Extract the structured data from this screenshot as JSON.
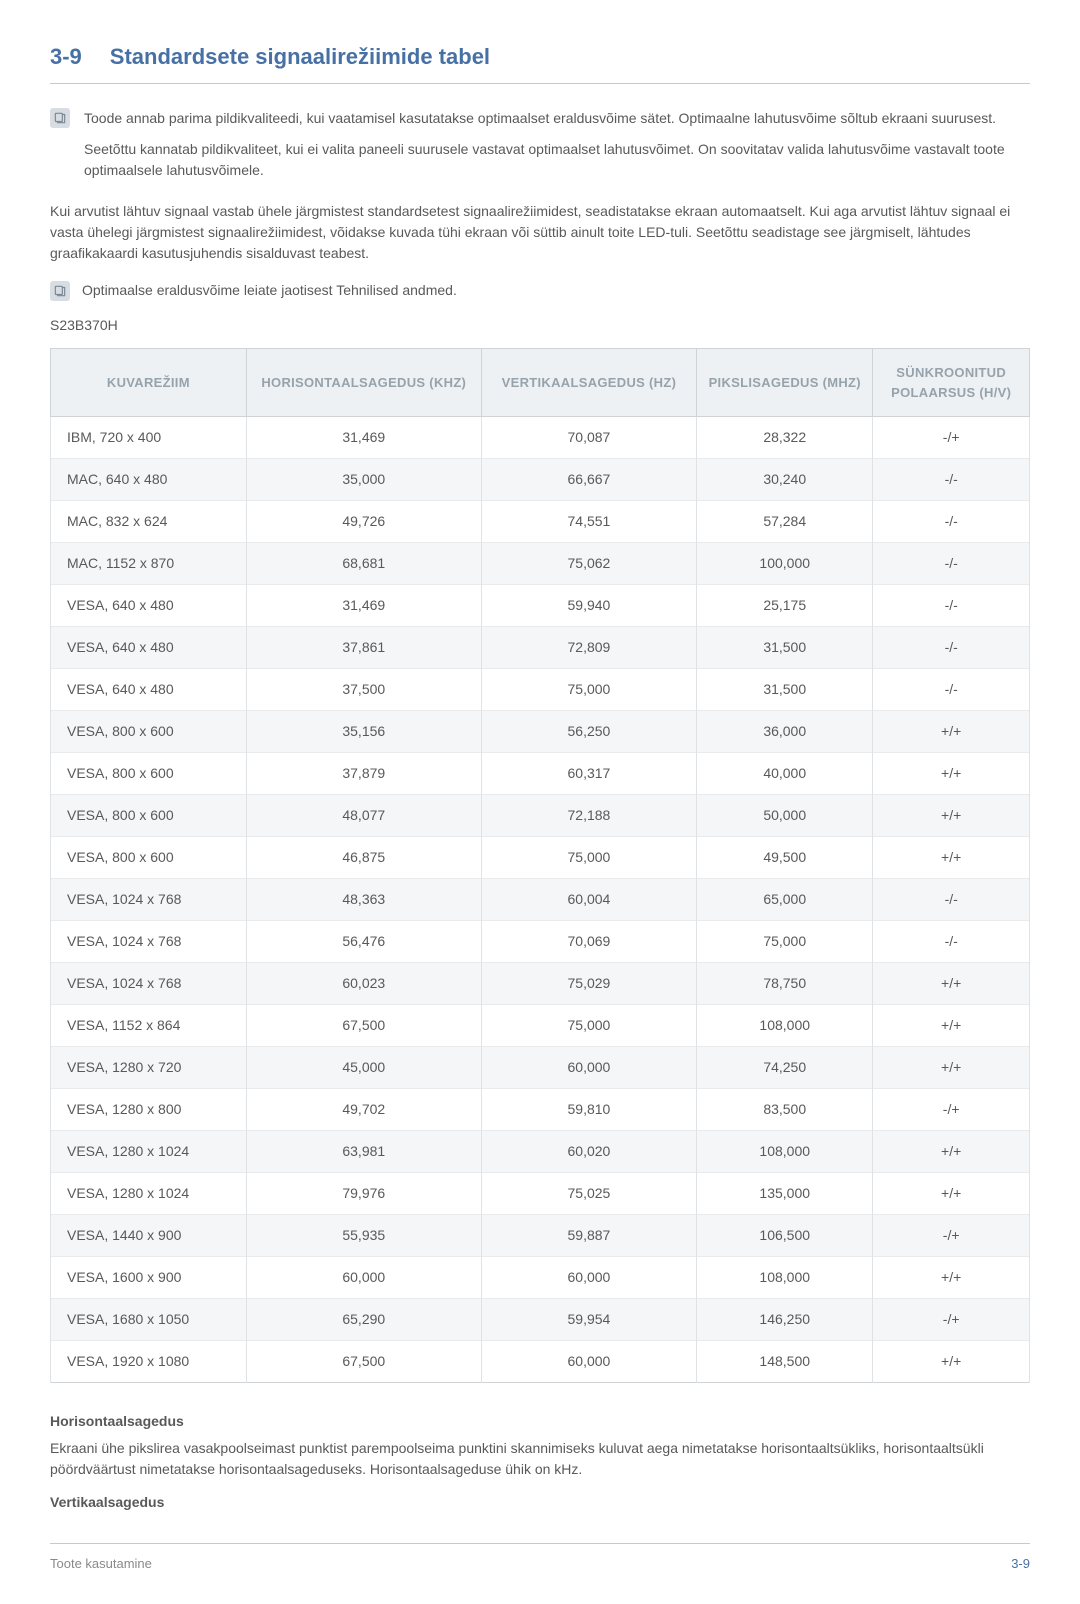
{
  "section": {
    "number": "3-9",
    "title": "Standardsete signaalirežiimide tabel"
  },
  "note1": {
    "p1": "Toode annab parima pildikvaliteedi, kui vaatamisel kasutatakse optimaalset eraldusvõime sätet. Optimaalne lahutusvõime sõltub ekraani suurusest.",
    "p2": "Seetõttu kannatab pildikvaliteet, kui ei valita paneeli suurusele vastavat optimaalset lahutusvõimet. On soovitatav valida lahutusvõime vastavalt toote optimaalsele lahutusvõimele."
  },
  "para1": "Kui arvutist lähtuv signaal vastab ühele järgmistest standardsetest signaalirežiimidest, seadistatakse ekraan automaatselt. Kui aga arvutist lähtuv signaal ei vasta ühelegi järgmistest signaalirežiimidest, võidakse kuvada tühi ekraan või süttib ainult toite LED-tuli. Seetõttu seadistage see järgmiselt, lähtudes graafikakaardi kasutusjuhendis sisalduvast teabest.",
  "note2": "Optimaalse eraldusvõime leiate jaotisest Tehnilised andmed.",
  "model": "S23B370H",
  "table": {
    "headers": {
      "mode": "KUVAREŽIIM",
      "hfreq": "HORISONTAALSAGEDUS (KHZ)",
      "vfreq": "VERTIKAALSAGEDUS (HZ)",
      "pixclk": "PIKSLISAGEDUS (MHZ)",
      "pol": "SÜNKROONITUD POLAARSUS (H/V)"
    },
    "col_widths": [
      "20%",
      "24%",
      "22%",
      "18%",
      "16%"
    ],
    "header_bg": "#eef1f3",
    "header_color": "#97a3ac",
    "row_alt_bg": "#f5f6f8",
    "border_color": "#cfd3d6",
    "rows": [
      {
        "mode": "IBM, 720 x 400",
        "h": "31,469",
        "v": "70,087",
        "p": "28,322",
        "pol": "-/+"
      },
      {
        "mode": "MAC, 640 x 480",
        "h": "35,000",
        "v": "66,667",
        "p": "30,240",
        "pol": "-/-"
      },
      {
        "mode": "MAC, 832 x 624",
        "h": "49,726",
        "v": "74,551",
        "p": "57,284",
        "pol": "-/-"
      },
      {
        "mode": "MAC, 1152 x 870",
        "h": "68,681",
        "v": "75,062",
        "p": "100,000",
        "pol": "-/-"
      },
      {
        "mode": "VESA, 640 x 480",
        "h": "31,469",
        "v": "59,940",
        "p": "25,175",
        "pol": "-/-"
      },
      {
        "mode": "VESA, 640 x 480",
        "h": "37,861",
        "v": "72,809",
        "p": "31,500",
        "pol": "-/-"
      },
      {
        "mode": "VESA, 640 x 480",
        "h": "37,500",
        "v": "75,000",
        "p": "31,500",
        "pol": "-/-"
      },
      {
        "mode": "VESA, 800 x 600",
        "h": "35,156",
        "v": "56,250",
        "p": "36,000",
        "pol": "+/+"
      },
      {
        "mode": "VESA, 800 x 600",
        "h": "37,879",
        "v": "60,317",
        "p": "40,000",
        "pol": "+/+"
      },
      {
        "mode": "VESA, 800 x 600",
        "h": "48,077",
        "v": "72,188",
        "p": "50,000",
        "pol": "+/+"
      },
      {
        "mode": "VESA, 800 x 600",
        "h": "46,875",
        "v": "75,000",
        "p": "49,500",
        "pol": "+/+"
      },
      {
        "mode": "VESA, 1024 x 768",
        "h": "48,363",
        "v": "60,004",
        "p": "65,000",
        "pol": "-/-"
      },
      {
        "mode": "VESA, 1024 x 768",
        "h": "56,476",
        "v": "70,069",
        "p": "75,000",
        "pol": "-/-"
      },
      {
        "mode": "VESA, 1024 x 768",
        "h": "60,023",
        "v": "75,029",
        "p": "78,750",
        "pol": "+/+"
      },
      {
        "mode": "VESA, 1152 x 864",
        "h": "67,500",
        "v": "75,000",
        "p": "108,000",
        "pol": "+/+"
      },
      {
        "mode": "VESA, 1280 x 720",
        "h": "45,000",
        "v": "60,000",
        "p": "74,250",
        "pol": "+/+"
      },
      {
        "mode": "VESA, 1280 x 800",
        "h": "49,702",
        "v": "59,810",
        "p": "83,500",
        "pol": "-/+"
      },
      {
        "mode": "VESA, 1280 x 1024",
        "h": "63,981",
        "v": "60,020",
        "p": "108,000",
        "pol": "+/+"
      },
      {
        "mode": "VESA, 1280 x 1024",
        "h": "79,976",
        "v": "75,025",
        "p": "135,000",
        "pol": "+/+"
      },
      {
        "mode": "VESA, 1440 x 900",
        "h": "55,935",
        "v": "59,887",
        "p": "106,500",
        "pol": "-/+"
      },
      {
        "mode": "VESA, 1600 x 900",
        "h": "60,000",
        "v": "60,000",
        "p": "108,000",
        "pol": "+/+"
      },
      {
        "mode": "VESA, 1680 x 1050",
        "h": "65,290",
        "v": "59,954",
        "p": "146,250",
        "pol": "-/+"
      },
      {
        "mode": "VESA, 1920 x 1080",
        "h": "67,500",
        "v": "60,000",
        "p": "148,500",
        "pol": "+/+"
      }
    ]
  },
  "defs": {
    "h_title": "Horisontaalsagedus",
    "h_body": "Ekraani ühe pikslirea vasakpoolseimast punktist parempoolseima punktini skannimiseks kuluvat aega nimetatakse horisontaaltsükliks, horisontaaltsükli pöördväärtust nimetatakse horisontaalsageduseks. Horisontaalsageduse ühik on kHz.",
    "v_title": "Vertikaalsagedus"
  },
  "footer": {
    "left": "Toote kasutamine",
    "right": "3-9"
  }
}
